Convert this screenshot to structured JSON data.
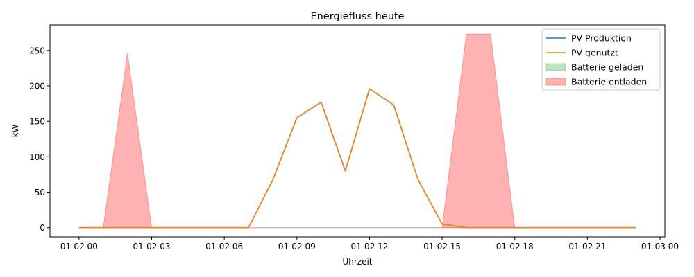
{
  "chart_data": {
    "type": "area",
    "title": "Energiefluss heute",
    "xlabel": "Uhrzeit",
    "ylabel": "kW",
    "x": [
      "01-02 00:00",
      "01-02 01:00",
      "01-02 02:00",
      "01-02 03:00",
      "01-02 04:00",
      "01-02 05:00",
      "01-02 06:00",
      "01-02 07:00",
      "01-02 08:00",
      "01-02 09:00",
      "01-02 10:00",
      "01-02 11:00",
      "01-02 12:00",
      "01-02 13:00",
      "01-02 14:00",
      "01-02 15:00",
      "01-02 16:00",
      "01-02 17:00",
      "01-02 18:00",
      "01-02 19:00",
      "01-02 20:00",
      "01-02 21:00",
      "01-02 22:00",
      "01-02 23:00"
    ],
    "xlim_hours": [
      -1.2,
      24.2
    ],
    "ylim": [
      -13,
      286
    ],
    "x_ticks": [
      "01-02 00",
      "01-02 03",
      "01-02 06",
      "01-02 09",
      "01-02 12",
      "01-02 15",
      "01-02 18",
      "01-02 21",
      "01-03 00"
    ],
    "y_ticks": [
      0,
      50,
      100,
      150,
      200,
      250
    ],
    "series": [
      {
        "name": "PV Produktion",
        "kind": "line",
        "color": "#1f77b4",
        "values": [
          0,
          0,
          0,
          0,
          0,
          0,
          0,
          0,
          67,
          155,
          177,
          80,
          196,
          173,
          68,
          5,
          0,
          0,
          0,
          0,
          0,
          0,
          0,
          0
        ]
      },
      {
        "name": "PV genutzt",
        "kind": "line",
        "color": "#ff7f0e",
        "values": [
          0,
          0,
          0,
          0,
          0,
          0,
          0,
          0,
          67,
          155,
          177,
          80,
          196,
          173,
          68,
          5,
          0,
          0,
          0,
          0,
          0,
          0,
          0,
          0
        ]
      },
      {
        "name": "Batterie geladen",
        "kind": "area",
        "color": "#2ca02c",
        "values": [
          0,
          0,
          0,
          0,
          0,
          0,
          0,
          0,
          0,
          0,
          0,
          0,
          0,
          0,
          0,
          0,
          0,
          0,
          0,
          0,
          0,
          0,
          0,
          0
        ]
      },
      {
        "name": "Batterie entladen",
        "kind": "area",
        "color": "#ff0000",
        "values": [
          0,
          0,
          246,
          0,
          0,
          0,
          0,
          0,
          0,
          0,
          0,
          0,
          0,
          0,
          0,
          0,
          273,
          273,
          0,
          0,
          0,
          0,
          0,
          0
        ]
      }
    ],
    "legend_position": "top-right",
    "grid": false
  }
}
